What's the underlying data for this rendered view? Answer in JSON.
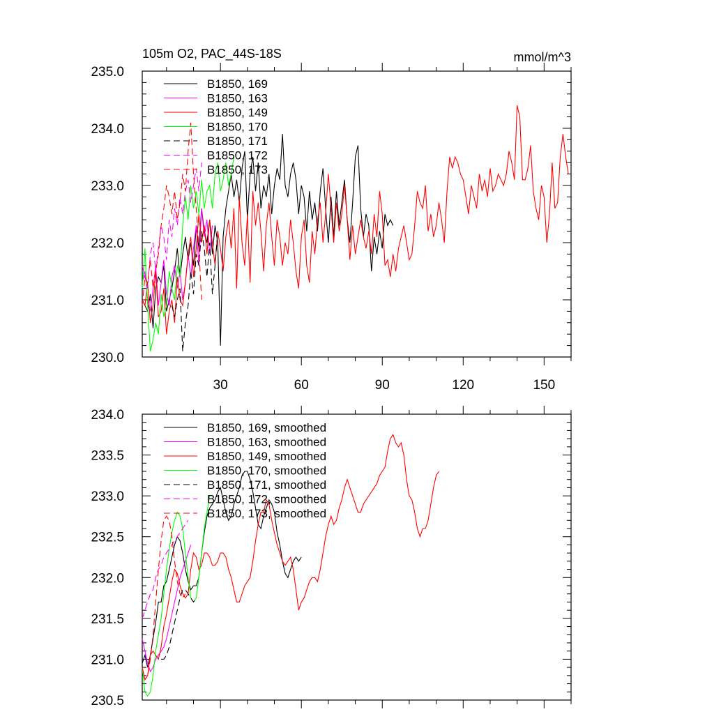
{
  "chart_data": [
    {
      "type": "line",
      "title_left": "105m O2, PAC_44S-18S",
      "title_right": "mmol/m^3",
      "xlabel": "",
      "ylabel": "",
      "xlim": [
        1,
        160
      ],
      "ylim": [
        230.0,
        235.0
      ],
      "xticks": [
        30,
        60,
        90,
        120,
        150
      ],
      "xtick_labels": [
        "30",
        "60",
        "90",
        "120",
        "150"
      ],
      "yticks": [
        230.0,
        231.0,
        232.0,
        233.0,
        234.0,
        235.0
      ],
      "ytick_labels": [
        "230.0",
        "231.0",
        "232.0",
        "233.0",
        "234.0",
        "235.0"
      ],
      "grid": false,
      "legend_position": "top-left",
      "series": [
        {
          "name": "B1850, 169",
          "color": "#000000",
          "dash": "solid",
          "x_start": 1,
          "values": [
            231.0,
            230.9,
            230.8,
            231.1,
            230.5,
            231.2,
            231.4,
            231.3,
            231.6,
            230.8,
            231.0,
            231.2,
            231.5,
            231.9,
            231.4,
            231.8,
            232.1,
            231.7,
            232.0,
            231.6,
            232.3,
            231.9,
            232.6,
            232.2,
            232.0,
            232.4,
            231.8,
            232.3,
            232.0,
            230.2,
            232.1,
            232.6,
            232.9,
            233.2,
            232.8,
            233.1,
            232.7,
            233.3,
            233.6,
            232.4,
            233.2,
            233.5,
            232.9,
            233.4,
            232.6,
            233.0,
            232.8,
            233.2,
            232.5,
            233.0,
            233.3,
            233.1,
            233.9,
            233.0,
            232.8,
            233.2,
            233.4,
            233.1,
            232.5,
            233.0,
            232.8,
            232.2,
            232.9,
            232.4,
            232.7,
            232.2,
            232.9,
            233.3,
            232.6,
            232.0,
            232.8,
            232.1,
            232.9,
            232.3,
            232.7,
            233.1,
            232.4,
            232.0,
            232.7,
            233.5,
            233.7,
            232.6,
            232.1,
            232.5,
            232.3,
            231.5,
            232.1,
            231.8,
            232.2,
            231.9,
            232.5,
            232.3,
            232.4,
            232.3
          ]
        },
        {
          "name": "B1850, 163",
          "color": "#ff00ff",
          "dash": "solid",
          "x_start": 1,
          "values": [
            231.3,
            231.5,
            231.0,
            230.8,
            231.2,
            231.6,
            230.9,
            231.3,
            231.7,
            231.1,
            230.9,
            231.4,
            231.6,
            231.2,
            231.5,
            231.0,
            231.3,
            231.8,
            231.4,
            231.9,
            232.3,
            231.6,
            232.6,
            232.1,
            232.4,
            231.8,
            232.3
          ]
        },
        {
          "name": "B1850, 149",
          "color": "#ff0000",
          "dash": "solid",
          "x_start": 1,
          "values": [
            231.0,
            230.9,
            231.3,
            230.6,
            230.9,
            231.5,
            230.7,
            230.8,
            231.2,
            230.4,
            230.8,
            231.0,
            230.6,
            231.4,
            231.0,
            230.9,
            231.3,
            231.8,
            232.1,
            231.4,
            231.9,
            232.5,
            232.0,
            232.3,
            231.8,
            232.4,
            232.0,
            231.6,
            232.2,
            231.9,
            231.5,
            232.1,
            232.4,
            231.9,
            232.6,
            231.2,
            232.8,
            232.0,
            231.6,
            232.5,
            231.3,
            232.9,
            232.3,
            232.7,
            232.2,
            231.5,
            232.3,
            232.7,
            232.1,
            231.6,
            232.4,
            232.1,
            231.6,
            232.0,
            231.8,
            232.4,
            232.0,
            231.5,
            231.2,
            232.1,
            232.4,
            231.6,
            231.3,
            232.2,
            231.8,
            232.4,
            232.7,
            232.0,
            232.5,
            233.2,
            232.6,
            232.0,
            232.7,
            232.2,
            232.5,
            233.0,
            232.4,
            231.7,
            232.3,
            231.8,
            232.1,
            232.4,
            232.1,
            231.9,
            232.2,
            231.8,
            232.5,
            232.1,
            232.9,
            232.5,
            231.6,
            231.7,
            231.4,
            231.8,
            231.5,
            231.9,
            232.1,
            232.3,
            232.0,
            231.7,
            231.8,
            232.3,
            232.9,
            232.7,
            232.6,
            233.0,
            232.2,
            232.5,
            232.1,
            232.3,
            232.7,
            232.4,
            232.0,
            232.9,
            233.5,
            233.3,
            233.5,
            233.4,
            233.2,
            233.1,
            232.8,
            232.5,
            233.0,
            232.8,
            232.6,
            233.2,
            232.9,
            233.1,
            232.8,
            233.3,
            232.9,
            233.0,
            233.2,
            233.1,
            233.0,
            233.2,
            233.6,
            233.4,
            233.1,
            234.4,
            234.2,
            233.1,
            233.1,
            233.3,
            233.7,
            232.9,
            232.6,
            232.4,
            233.0,
            232.8,
            232.0,
            232.5,
            233.4,
            232.6,
            232.7,
            233.5,
            233.9,
            233.5,
            233.2
          ]
        },
        {
          "name": "B1850, 170",
          "color": "#00ff00",
          "dash": "solid",
          "x_start": 1,
          "values": [
            231.2,
            231.9,
            230.9,
            230.1,
            230.3,
            230.6,
            230.4,
            231.1,
            230.7,
            230.9,
            231.5,
            231.2,
            231.0,
            231.6,
            231.4,
            232.3,
            232.8,
            232.4,
            233.0,
            232.6,
            232.9,
            232.5,
            233.1,
            232.6,
            232.9,
            233.0,
            232.6,
            233.2,
            233.4,
            232.9,
            233.1,
            233.4,
            233.0,
            233.2,
            233.5
          ]
        },
        {
          "name": "B1850, 171",
          "color": "#000000",
          "dash": "dashed",
          "x_start": 12,
          "values": [
            230.9,
            230.7,
            231.0,
            231.2,
            230.1,
            230.6,
            230.9,
            231.5,
            231.1,
            231.8,
            231.6,
            232.2,
            231.9,
            231.4,
            232.0,
            231.1,
            231.6,
            232.2
          ]
        },
        {
          "name": "B1850, 172",
          "color": "#ff00ff",
          "dash": "dashed",
          "x_start": 1,
          "values": [
            231.6,
            231.4,
            231.2,
            231.8,
            232.0,
            231.5,
            231.9,
            232.3,
            232.1,
            231.7,
            232.4,
            232.1,
            232.6,
            232.3,
            232.8,
            232.5,
            232.9,
            233.1,
            232.7,
            233.0,
            233.3,
            232.9,
            233.4
          ]
        },
        {
          "name": "B1850, 173",
          "color": "#ff0000",
          "dash": "dashed",
          "x_start": 1,
          "values": [
            230.9,
            231.4,
            231.3,
            231.7,
            231.2,
            231.5,
            231.8,
            232.3,
            232.6,
            233.0,
            232.8,
            232.5,
            232.9,
            232.4,
            232.7,
            233.2,
            232.9,
            233.6,
            234.1,
            233.2,
            232.6,
            231.9,
            231.0
          ]
        }
      ]
    },
    {
      "type": "line",
      "xlabel": "",
      "ylabel": "",
      "xlim": [
        1,
        160
      ],
      "ylim": [
        230.5,
        234.0
      ],
      "xticks": [
        30,
        60,
        90,
        120,
        150
      ],
      "yticks": [
        230.5,
        231.0,
        231.5,
        232.0,
        232.5,
        233.0,
        233.5,
        234.0
      ],
      "ytick_labels": [
        "230.5",
        "231.0",
        "231.5",
        "232.0",
        "232.5",
        "233.0",
        "233.5",
        "234.0"
      ],
      "grid": false,
      "legend_position": "top-left",
      "series": [
        {
          "name": "B1850, 169, smoothed",
          "color": "#000000",
          "dash": "solid",
          "x_start": 1,
          "values": [
            230.95,
            231.05,
            230.9,
            231.05,
            231.25,
            231.45,
            231.7,
            231.7,
            231.9,
            231.95,
            232.1,
            232.25,
            232.4,
            232.5,
            232.45,
            232.3,
            232.1,
            231.95,
            231.85,
            231.9,
            231.9,
            232.0,
            232.3,
            232.55,
            232.75,
            232.85,
            232.9,
            232.95,
            233.05,
            233.1,
            232.95,
            232.8,
            232.7,
            232.75,
            232.9,
            233.0,
            233.1,
            233.25,
            233.3,
            233.3,
            233.2,
            233.05,
            232.85,
            232.65,
            232.6,
            232.75,
            232.85,
            232.95,
            232.9,
            232.8,
            232.55,
            232.4,
            232.2,
            232.05,
            232.0,
            232.1,
            232.2,
            232.25,
            232.2,
            232.25
          ]
        },
        {
          "name": "B1850, 163, smoothed",
          "color": "#ff00ff",
          "dash": "solid",
          "x_start": 1,
          "values": [
            231.25,
            231.1,
            230.95,
            230.85,
            230.9,
            231.0,
            231.05,
            231.1,
            231.15,
            231.25,
            231.4,
            231.55,
            231.7,
            231.85,
            232.0,
            232.1,
            232.2,
            232.3,
            232.4
          ]
        },
        {
          "name": "B1850, 149, smoothed",
          "color": "#ff0000",
          "dash": "solid",
          "x_start": 1,
          "values": [
            230.9,
            230.75,
            230.8,
            231.05,
            231.1,
            231.05,
            231.0,
            231.15,
            231.4,
            231.55,
            231.75,
            231.95,
            232.1,
            232.05,
            231.9,
            231.8,
            231.75,
            231.8,
            232.1,
            232.3,
            232.25,
            232.1,
            232.15,
            232.3,
            232.3,
            232.25,
            232.15,
            232.15,
            232.2,
            232.3,
            232.3,
            232.25,
            232.1,
            232.0,
            231.85,
            231.7,
            231.7,
            231.8,
            231.9,
            231.95,
            232.0,
            232.2,
            232.45,
            232.65,
            232.8,
            232.8,
            232.95,
            232.9,
            232.7,
            232.55,
            232.4,
            232.3,
            232.2,
            232.15,
            232.2,
            232.25,
            232.1,
            231.85,
            231.6,
            231.7,
            231.75,
            231.85,
            231.95,
            232.0,
            232.0,
            231.95,
            232.1,
            232.3,
            232.5,
            232.65,
            232.75,
            232.65,
            232.7,
            232.85,
            232.95,
            233.1,
            233.2,
            233.1,
            233.0,
            232.9,
            232.8,
            232.8,
            232.9,
            232.95,
            233.0,
            233.05,
            233.1,
            233.15,
            233.25,
            233.3,
            233.35,
            233.55,
            233.7,
            233.75,
            233.65,
            233.6,
            233.65,
            233.5,
            233.2,
            233.0,
            232.95,
            232.8,
            232.6,
            232.5,
            232.6,
            232.6,
            232.7,
            232.9,
            233.1,
            233.25,
            233.3
          ]
        },
        {
          "name": "B1850, 170, smoothed",
          "color": "#00ff00",
          "dash": "solid",
          "x_start": 1,
          "values": [
            230.9,
            230.6,
            230.55,
            230.6,
            230.8,
            231.1,
            231.3,
            231.5,
            231.8,
            232.1,
            232.35,
            232.55,
            232.7,
            232.8,
            232.75,
            232.6,
            232.3,
            232.0,
            231.75,
            231.7,
            231.75,
            232.0,
            232.3,
            232.6,
            232.8,
            233.0
          ]
        },
        {
          "name": "B1850, 171, smoothed",
          "color": "#000000",
          "dash": "dashed",
          "x_start": 8,
          "values": [
            231.0,
            231.0,
            231.05,
            231.15,
            231.3,
            231.45,
            231.6,
            231.75,
            231.85,
            231.85,
            231.8,
            231.75,
            231.7,
            231.75
          ]
        },
        {
          "name": "B1850, 172, smoothed",
          "color": "#ff00ff",
          "dash": "dashed",
          "x_start": 1,
          "values": [
            231.5,
            231.6,
            231.7,
            231.8,
            231.85,
            232.0,
            232.1,
            232.15,
            232.25,
            232.3,
            232.35,
            232.4,
            232.45,
            232.5,
            232.55,
            232.6,
            232.65,
            232.7
          ]
        },
        {
          "name": "B1850, 173, smoothed",
          "color": "#ff0000",
          "dash": "dashed",
          "x_start": 1,
          "values": [
            230.9,
            230.75,
            230.8,
            231.0,
            231.3,
            231.7,
            232.1,
            232.45,
            232.7,
            232.75,
            232.7,
            232.5,
            232.2,
            231.95,
            231.8,
            231.75,
            231.8
          ]
        }
      ]
    }
  ]
}
